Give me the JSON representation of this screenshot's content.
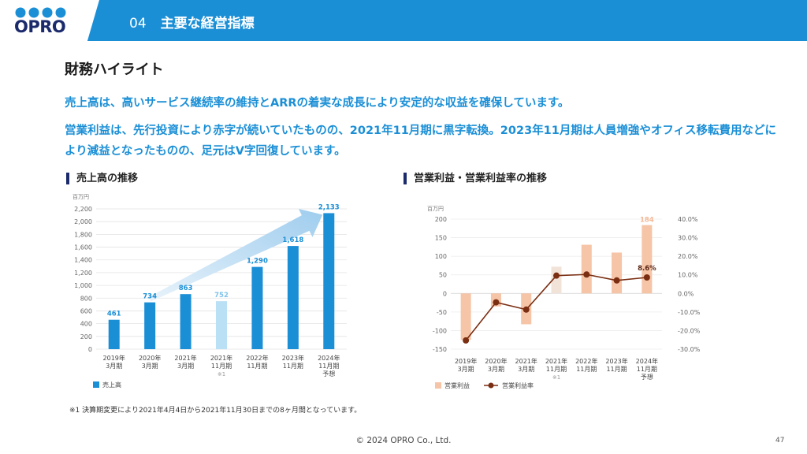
{
  "header": {
    "logo": "OPRO",
    "section_number": "04",
    "section_title": "主要な経営指標"
  },
  "page_title": "財務ハイライト",
  "lead_1": "売上高は、高いサービス継続率の維持とARRの着実な成長により安定的な収益を確保しています。",
  "lead_2": "営業利益は、先行投資により赤字が続いていたものの、2021年11月期に黒字転換。2023年11月期は人員増強やオフィス移転費用などにより減益となったものの、足元はV字回復しています。",
  "colors": {
    "header": "#1b8fd6",
    "bar": "#1b8fd6",
    "bar_light": "#b9e0f5",
    "op_bar": "#f6c4a7",
    "op_bar_light": "#f2e3d9",
    "op_line": "#7a2e12",
    "navy": "#1b2a6b"
  },
  "chart_data": [
    {
      "type": "bar",
      "title": "売上高の推移",
      "unit_label": "百万円",
      "categories": [
        [
          "2019年",
          "3月期"
        ],
        [
          "2020年",
          "3月期"
        ],
        [
          "2021年",
          "3月期"
        ],
        [
          "2021年",
          "11月期",
          "※1"
        ],
        [
          "2022年",
          "11月期"
        ],
        [
          "2023年",
          "11月期"
        ],
        [
          "2024年",
          "11月期",
          "予想"
        ]
      ],
      "series": [
        {
          "name": "売上高",
          "values": [
            461,
            734,
            863,
            752,
            1290,
            1618,
            2133
          ]
        }
      ],
      "value_labels": [
        "461",
        "734",
        "863",
        "752",
        "1,290",
        "1,618",
        "2,133"
      ],
      "y_ticks": [
        "0",
        "200",
        "400",
        "600",
        "800",
        "1,000",
        "1,200",
        "1,400",
        "1,600",
        "1,800",
        "2,000",
        "2,200"
      ],
      "ylim": [
        0,
        2200
      ],
      "highlight_index": 3,
      "grid": true,
      "legend": "bottom-left"
    },
    {
      "type": "bar+line",
      "title": "営業利益・営業利益率の推移",
      "unit_label": "百万円",
      "categories": [
        [
          "2019年",
          "3月期"
        ],
        [
          "2020年",
          "3月期"
        ],
        [
          "2021年",
          "3月期"
        ],
        [
          "2021年",
          "11月期",
          "※1"
        ],
        [
          "2022年",
          "11月期"
        ],
        [
          "2023年",
          "11月期"
        ],
        [
          "2024年",
          "11月期",
          "予想"
        ]
      ],
      "series": [
        {
          "name": "営業利益",
          "axis": "left",
          "values": [
            -125,
            -35,
            -83,
            72,
            131,
            110,
            184
          ]
        },
        {
          "name": "営業利益率",
          "axis": "right",
          "values": [
            -25.3,
            -4.8,
            -8.7,
            9.6,
            10.2,
            7.0,
            8.6
          ]
        }
      ],
      "value_labels": {
        "bar_last": "184",
        "line_last": "8.6%"
      },
      "y_left_ticks": [
        "-150",
        "-100",
        "-50",
        "0",
        "50",
        "100",
        "150",
        "200"
      ],
      "y_right_ticks": [
        "-30.0%",
        "-20.0%",
        "-10.0%",
        "0.0%",
        "10.0%",
        "20.0%",
        "30.0%",
        "40.0%"
      ],
      "ylim_left": [
        -150,
        200
      ],
      "ylim_right": [
        -30,
        40
      ],
      "highlight_index": 3,
      "grid": true,
      "legend": "bottom-left"
    }
  ],
  "footnote": "※1 決算期変更により2021年4月4日から2021年11月30日までの8ヶ月間となっています。",
  "copyright": "© 2024 OPRO Co., Ltd.",
  "page_number": "47"
}
